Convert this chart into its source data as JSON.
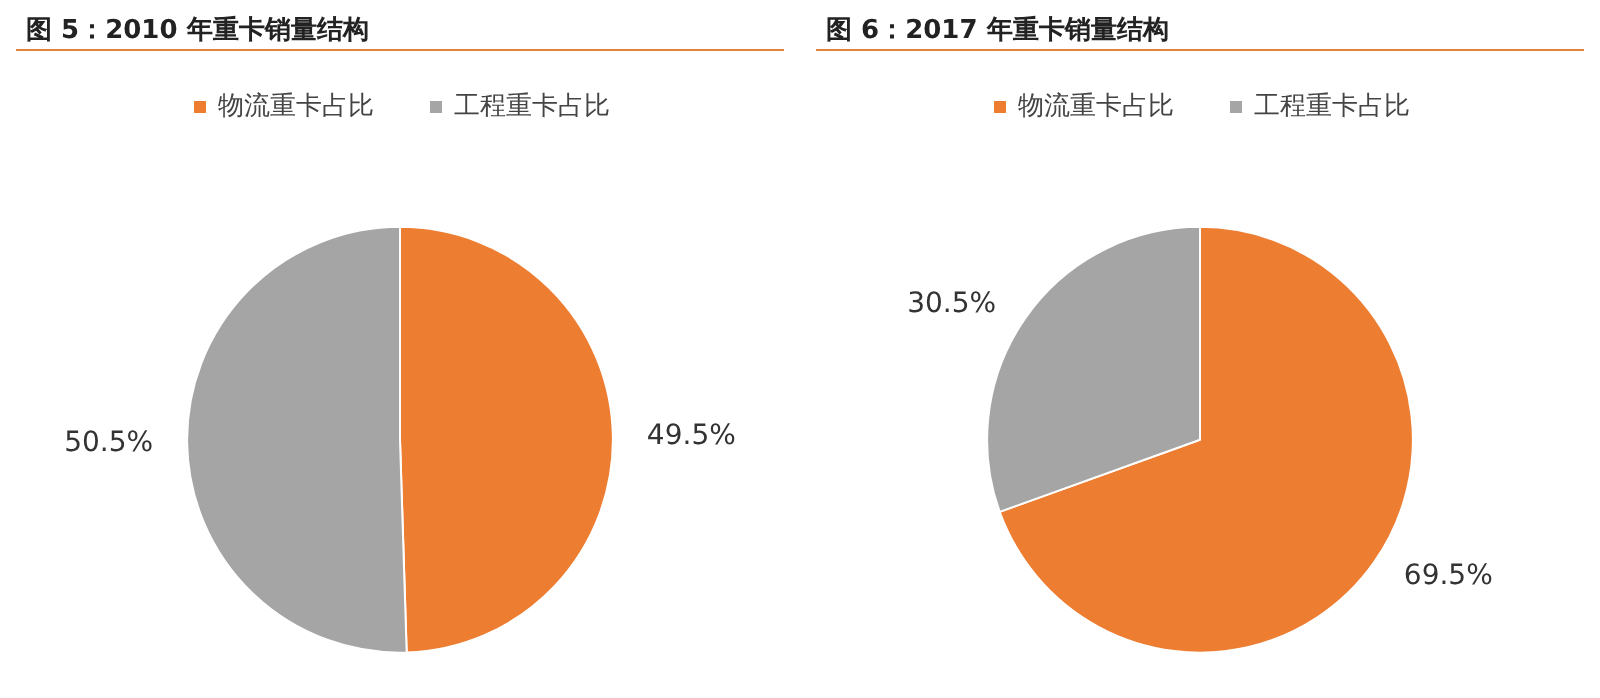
{
  "chart_data": [
    {
      "type": "pie",
      "title": "图 5：2010 年重卡销量结构",
      "categories": [
        "物流重卡占比",
        "工程重卡占比"
      ],
      "values": [
        49.5,
        50.5
      ],
      "colors": [
        "#ed7d31",
        "#a5a5a5"
      ],
      "value_labels": [
        "49.5%",
        "50.5%"
      ],
      "legend": "top"
    },
    {
      "type": "pie",
      "title": "图 6：2017 年重卡销量结构",
      "categories": [
        "物流重卡占比",
        "工程重卡占比"
      ],
      "values": [
        69.5,
        30.5
      ],
      "colors": [
        "#ed7d31",
        "#a5a5a5"
      ],
      "value_labels": [
        "69.5%",
        "30.5%"
      ],
      "legend": "top"
    }
  ]
}
